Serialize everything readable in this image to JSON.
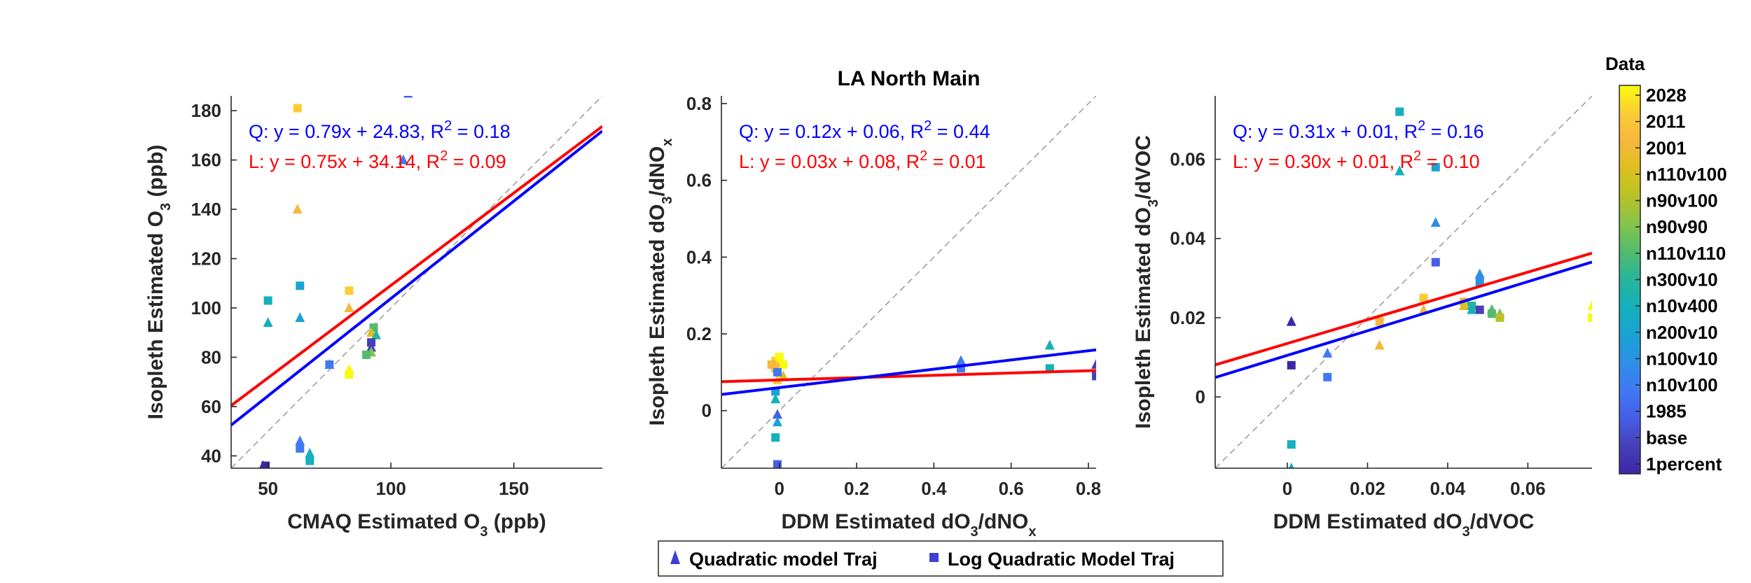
{
  "figure_title": "LA North Main",
  "colorbar": {
    "title": "Data",
    "labels": [
      "2028",
      "2011",
      "2001",
      "n110v100",
      "n90v100",
      "n90v90",
      "n110v110",
      "n300v10",
      "n10v400",
      "n200v10",
      "n100v10",
      "n10v100",
      "1985",
      "base",
      "1percent"
    ],
    "colors": [
      "#f9fb0e",
      "#fbcc35",
      "#f6b73c",
      "#dcc01f",
      "#b8c227",
      "#85c34c",
      "#52bb6e",
      "#27b59b",
      "#14b0bb",
      "#1aa3d4",
      "#2d8fe8",
      "#4079f5",
      "#475ee7",
      "#4640b8",
      "#3e26a8"
    ]
  },
  "legend": {
    "items": [
      {
        "label": "Quadratic model Traj",
        "marker": "triangle",
        "color": "#3d3fd4"
      },
      {
        "label": "Log Quadratic Model Traj",
        "marker": "square",
        "color": "#3d3fd4"
      }
    ]
  },
  "colors": {
    "q_fit": "#0000ff",
    "l_fit": "#ff0000",
    "one_to_one": "#999999"
  },
  "chart_data": [
    {
      "type": "scatter",
      "xlabel": "CMAQ Estimated O",
      "xlabel_sub": "3",
      "xlabel_suffix": " (ppb)",
      "ylabel": "Isopleth Estimated O",
      "ylabel_sub": "3",
      "ylabel_suffix": " (ppb)",
      "xlim": [
        35,
        186
      ],
      "ylim": [
        35,
        186
      ],
      "xticks": [
        50,
        100,
        150
      ],
      "yticks": [
        40,
        60,
        80,
        100,
        120,
        140,
        160,
        180
      ],
      "eq_q": "Q: y = 0.79x + 24.83, R",
      "eq_q_tail": " = 0.18",
      "eq_l": "L: y = 0.75x + 34.14, R",
      "eq_l_tail": " = 0.09",
      "fit_q": {
        "slope": 0.79,
        "intercept": 24.83
      },
      "fit_l": {
        "slope": 0.75,
        "intercept": 34.14
      },
      "points": [
        {
          "x": 62,
          "y": 181,
          "m": "s",
          "c": 1
        },
        {
          "x": 107,
          "y": 187,
          "m": "s",
          "c": 12
        },
        {
          "x": 105,
          "y": 160,
          "m": "t",
          "c": 11
        },
        {
          "x": 62,
          "y": 140,
          "m": "t",
          "c": 2
        },
        {
          "x": 63,
          "y": 109,
          "m": "s",
          "c": 9
        },
        {
          "x": 83,
          "y": 107,
          "m": "s",
          "c": 1
        },
        {
          "x": 50,
          "y": 103,
          "m": "s",
          "c": 8
        },
        {
          "x": 83,
          "y": 100,
          "m": "t",
          "c": 2
        },
        {
          "x": 63,
          "y": 96,
          "m": "t",
          "c": 9
        },
        {
          "x": 50,
          "y": 94,
          "m": "t",
          "c": 8
        },
        {
          "x": 93,
          "y": 92,
          "m": "s",
          "c": 6
        },
        {
          "x": 92,
          "y": 90,
          "m": "t",
          "c": 3
        },
        {
          "x": 94,
          "y": 89,
          "m": "t",
          "c": 7
        },
        {
          "x": 92,
          "y": 86,
          "m": "s",
          "c": 13
        },
        {
          "x": 92,
          "y": 84,
          "m": "t",
          "c": 13
        },
        {
          "x": 92,
          "y": 82,
          "m": "t",
          "c": 5
        },
        {
          "x": 90,
          "y": 81,
          "m": "s",
          "c": 6
        },
        {
          "x": 75,
          "y": 77,
          "m": "s",
          "c": 11
        },
        {
          "x": 75,
          "y": 77,
          "m": "t",
          "c": 11
        },
        {
          "x": 83,
          "y": 75,
          "m": "t",
          "c": 0
        },
        {
          "x": 83,
          "y": 73,
          "m": "s",
          "c": 0
        },
        {
          "x": 63,
          "y": 46,
          "m": "t",
          "c": 11
        },
        {
          "x": 63,
          "y": 43,
          "m": "s",
          "c": 11
        },
        {
          "x": 67,
          "y": 41,
          "m": "t",
          "c": 8
        },
        {
          "x": 67,
          "y": 38,
          "m": "s",
          "c": 8
        },
        {
          "x": 48,
          "y": 36,
          "m": "t",
          "c": 14
        },
        {
          "x": 49,
          "y": 36,
          "m": "s",
          "c": 14
        }
      ]
    },
    {
      "type": "scatter",
      "title": "LA North Main",
      "xlabel": "DDM Estimated dO",
      "xlabel_sub": "3",
      "xlabel_mid": "/dNO",
      "xlabel_sub2": "x",
      "ylabel": "Isopleth Estimated dO",
      "ylabel_sub": "3",
      "ylabel_mid": "/dNO",
      "ylabel_sub2": "x",
      "xlim": [
        -0.15,
        0.82
      ],
      "ylim": [
        -0.15,
        0.82
      ],
      "xticks": [
        0,
        0.2,
        0.4,
        0.6,
        0.8
      ],
      "yticks": [
        0,
        0.2,
        0.4,
        0.6,
        0.8
      ],
      "eq_q": "Q: y = 0.12x + 0.06, R",
      "eq_q_tail": " = 0.44",
      "eq_l": "L: y = 0.03x + 0.08, R",
      "eq_l_tail": " = 0.01",
      "fit_q": {
        "slope": 0.12,
        "intercept": 0.06
      },
      "fit_l": {
        "slope": 0.03,
        "intercept": 0.08
      },
      "points": [
        {
          "x": -0.01,
          "y": 0.13,
          "m": "s",
          "c": 1
        },
        {
          "x": 0.0,
          "y": 0.14,
          "m": "s",
          "c": 0
        },
        {
          "x": 0.01,
          "y": 0.12,
          "m": "s",
          "c": 0
        },
        {
          "x": -0.01,
          "y": 0.11,
          "m": "s",
          "c": 2
        },
        {
          "x": 0.0,
          "y": 0.1,
          "m": "t",
          "c": 0
        },
        {
          "x": 0.01,
          "y": 0.09,
          "m": "t",
          "c": 3
        },
        {
          "x": -0.005,
          "y": 0.08,
          "m": "t",
          "c": 1
        },
        {
          "x": -0.02,
          "y": 0.12,
          "m": "s",
          "c": 2
        },
        {
          "x": -0.01,
          "y": 0.05,
          "m": "s",
          "c": 9
        },
        {
          "x": -0.01,
          "y": 0.03,
          "m": "t",
          "c": 8
        },
        {
          "x": -0.005,
          "y": 0.1,
          "m": "s",
          "c": 11
        },
        {
          "x": -0.005,
          "y": -0.01,
          "m": "t",
          "c": 12
        },
        {
          "x": -0.005,
          "y": -0.03,
          "m": "t",
          "c": 9
        },
        {
          "x": -0.01,
          "y": -0.07,
          "m": "s",
          "c": 8
        },
        {
          "x": -0.005,
          "y": -0.14,
          "m": "s",
          "c": 12
        },
        {
          "x": 0.47,
          "y": 0.13,
          "m": "t",
          "c": 11
        },
        {
          "x": 0.47,
          "y": 0.11,
          "m": "s",
          "c": 11
        },
        {
          "x": 0.7,
          "y": 0.17,
          "m": "t",
          "c": 8
        },
        {
          "x": 0.7,
          "y": 0.11,
          "m": "s",
          "c": 8
        },
        {
          "x": 0.82,
          "y": 0.12,
          "m": "t",
          "c": 13
        },
        {
          "x": 0.82,
          "y": 0.09,
          "m": "s",
          "c": 13
        }
      ]
    },
    {
      "type": "scatter",
      "xlabel": "DDM Estimated dO",
      "xlabel_sub": "3",
      "xlabel_mid": "/dVOC",
      "ylabel": "Isopleth Estimated dO",
      "ylabel_sub": "3",
      "ylabel_mid": "/dVOC",
      "xlim": [
        -0.018,
        0.076
      ],
      "ylim": [
        -0.018,
        0.076
      ],
      "xticks": [
        0,
        0.02,
        0.04,
        0.06
      ],
      "yticks": [
        0,
        0.02,
        0.04,
        0.06
      ],
      "eq_q": "Q: y = 0.31x + 0.01, R",
      "eq_q_tail": " = 0.16",
      "eq_l": "L: y = 0.30x + 0.01, R",
      "eq_l_tail": " = 0.10",
      "fit_q": {
        "slope": 0.31,
        "intercept": 0.0105
      },
      "fit_l": {
        "slope": 0.3,
        "intercept": 0.0135
      },
      "points": [
        {
          "x": 0.028,
          "y": 0.072,
          "m": "s",
          "c": 8
        },
        {
          "x": 0.037,
          "y": 0.058,
          "m": "s",
          "c": 9
        },
        {
          "x": 0.028,
          "y": 0.057,
          "m": "t",
          "c": 8
        },
        {
          "x": 0.037,
          "y": 0.044,
          "m": "t",
          "c": 10
        },
        {
          "x": 0.037,
          "y": 0.034,
          "m": "s",
          "c": 12
        },
        {
          "x": 0.048,
          "y": 0.031,
          "m": "t",
          "c": 10
        },
        {
          "x": 0.048,
          "y": 0.029,
          "m": "s",
          "c": 10
        },
        {
          "x": 0.034,
          "y": 0.025,
          "m": "s",
          "c": 1
        },
        {
          "x": 0.034,
          "y": 0.022,
          "m": "t",
          "c": 2
        },
        {
          "x": 0.044,
          "y": 0.024,
          "m": "s",
          "c": 2
        },
        {
          "x": 0.044,
          "y": 0.023,
          "m": "t",
          "c": 3
        },
        {
          "x": 0.046,
          "y": 0.023,
          "m": "s",
          "c": 7
        },
        {
          "x": 0.046,
          "y": 0.022,
          "m": "t",
          "c": 8
        },
        {
          "x": 0.048,
          "y": 0.022,
          "m": "s",
          "c": 13
        },
        {
          "x": 0.051,
          "y": 0.022,
          "m": "t",
          "c": 6
        },
        {
          "x": 0.051,
          "y": 0.021,
          "m": "s",
          "c": 6
        },
        {
          "x": 0.053,
          "y": 0.021,
          "m": "t",
          "c": 5
        },
        {
          "x": 0.053,
          "y": 0.02,
          "m": "s",
          "c": 4
        },
        {
          "x": 0.023,
          "y": 0.019,
          "m": "s",
          "c": 2
        },
        {
          "x": 0.023,
          "y": 0.013,
          "m": "t",
          "c": 2
        },
        {
          "x": 0.076,
          "y": 0.023,
          "m": "t",
          "c": 0
        },
        {
          "x": 0.076,
          "y": 0.02,
          "m": "s",
          "c": 0
        },
        {
          "x": 0.001,
          "y": 0.019,
          "m": "t",
          "c": 14
        },
        {
          "x": 0.01,
          "y": 0.011,
          "m": "t",
          "c": 11
        },
        {
          "x": 0.001,
          "y": 0.008,
          "m": "s",
          "c": 14
        },
        {
          "x": 0.01,
          "y": 0.005,
          "m": "s",
          "c": 11
        },
        {
          "x": 0.001,
          "y": -0.012,
          "m": "s",
          "c": 8
        },
        {
          "x": 0.001,
          "y": -0.018,
          "m": "t",
          "c": 8
        }
      ]
    }
  ]
}
